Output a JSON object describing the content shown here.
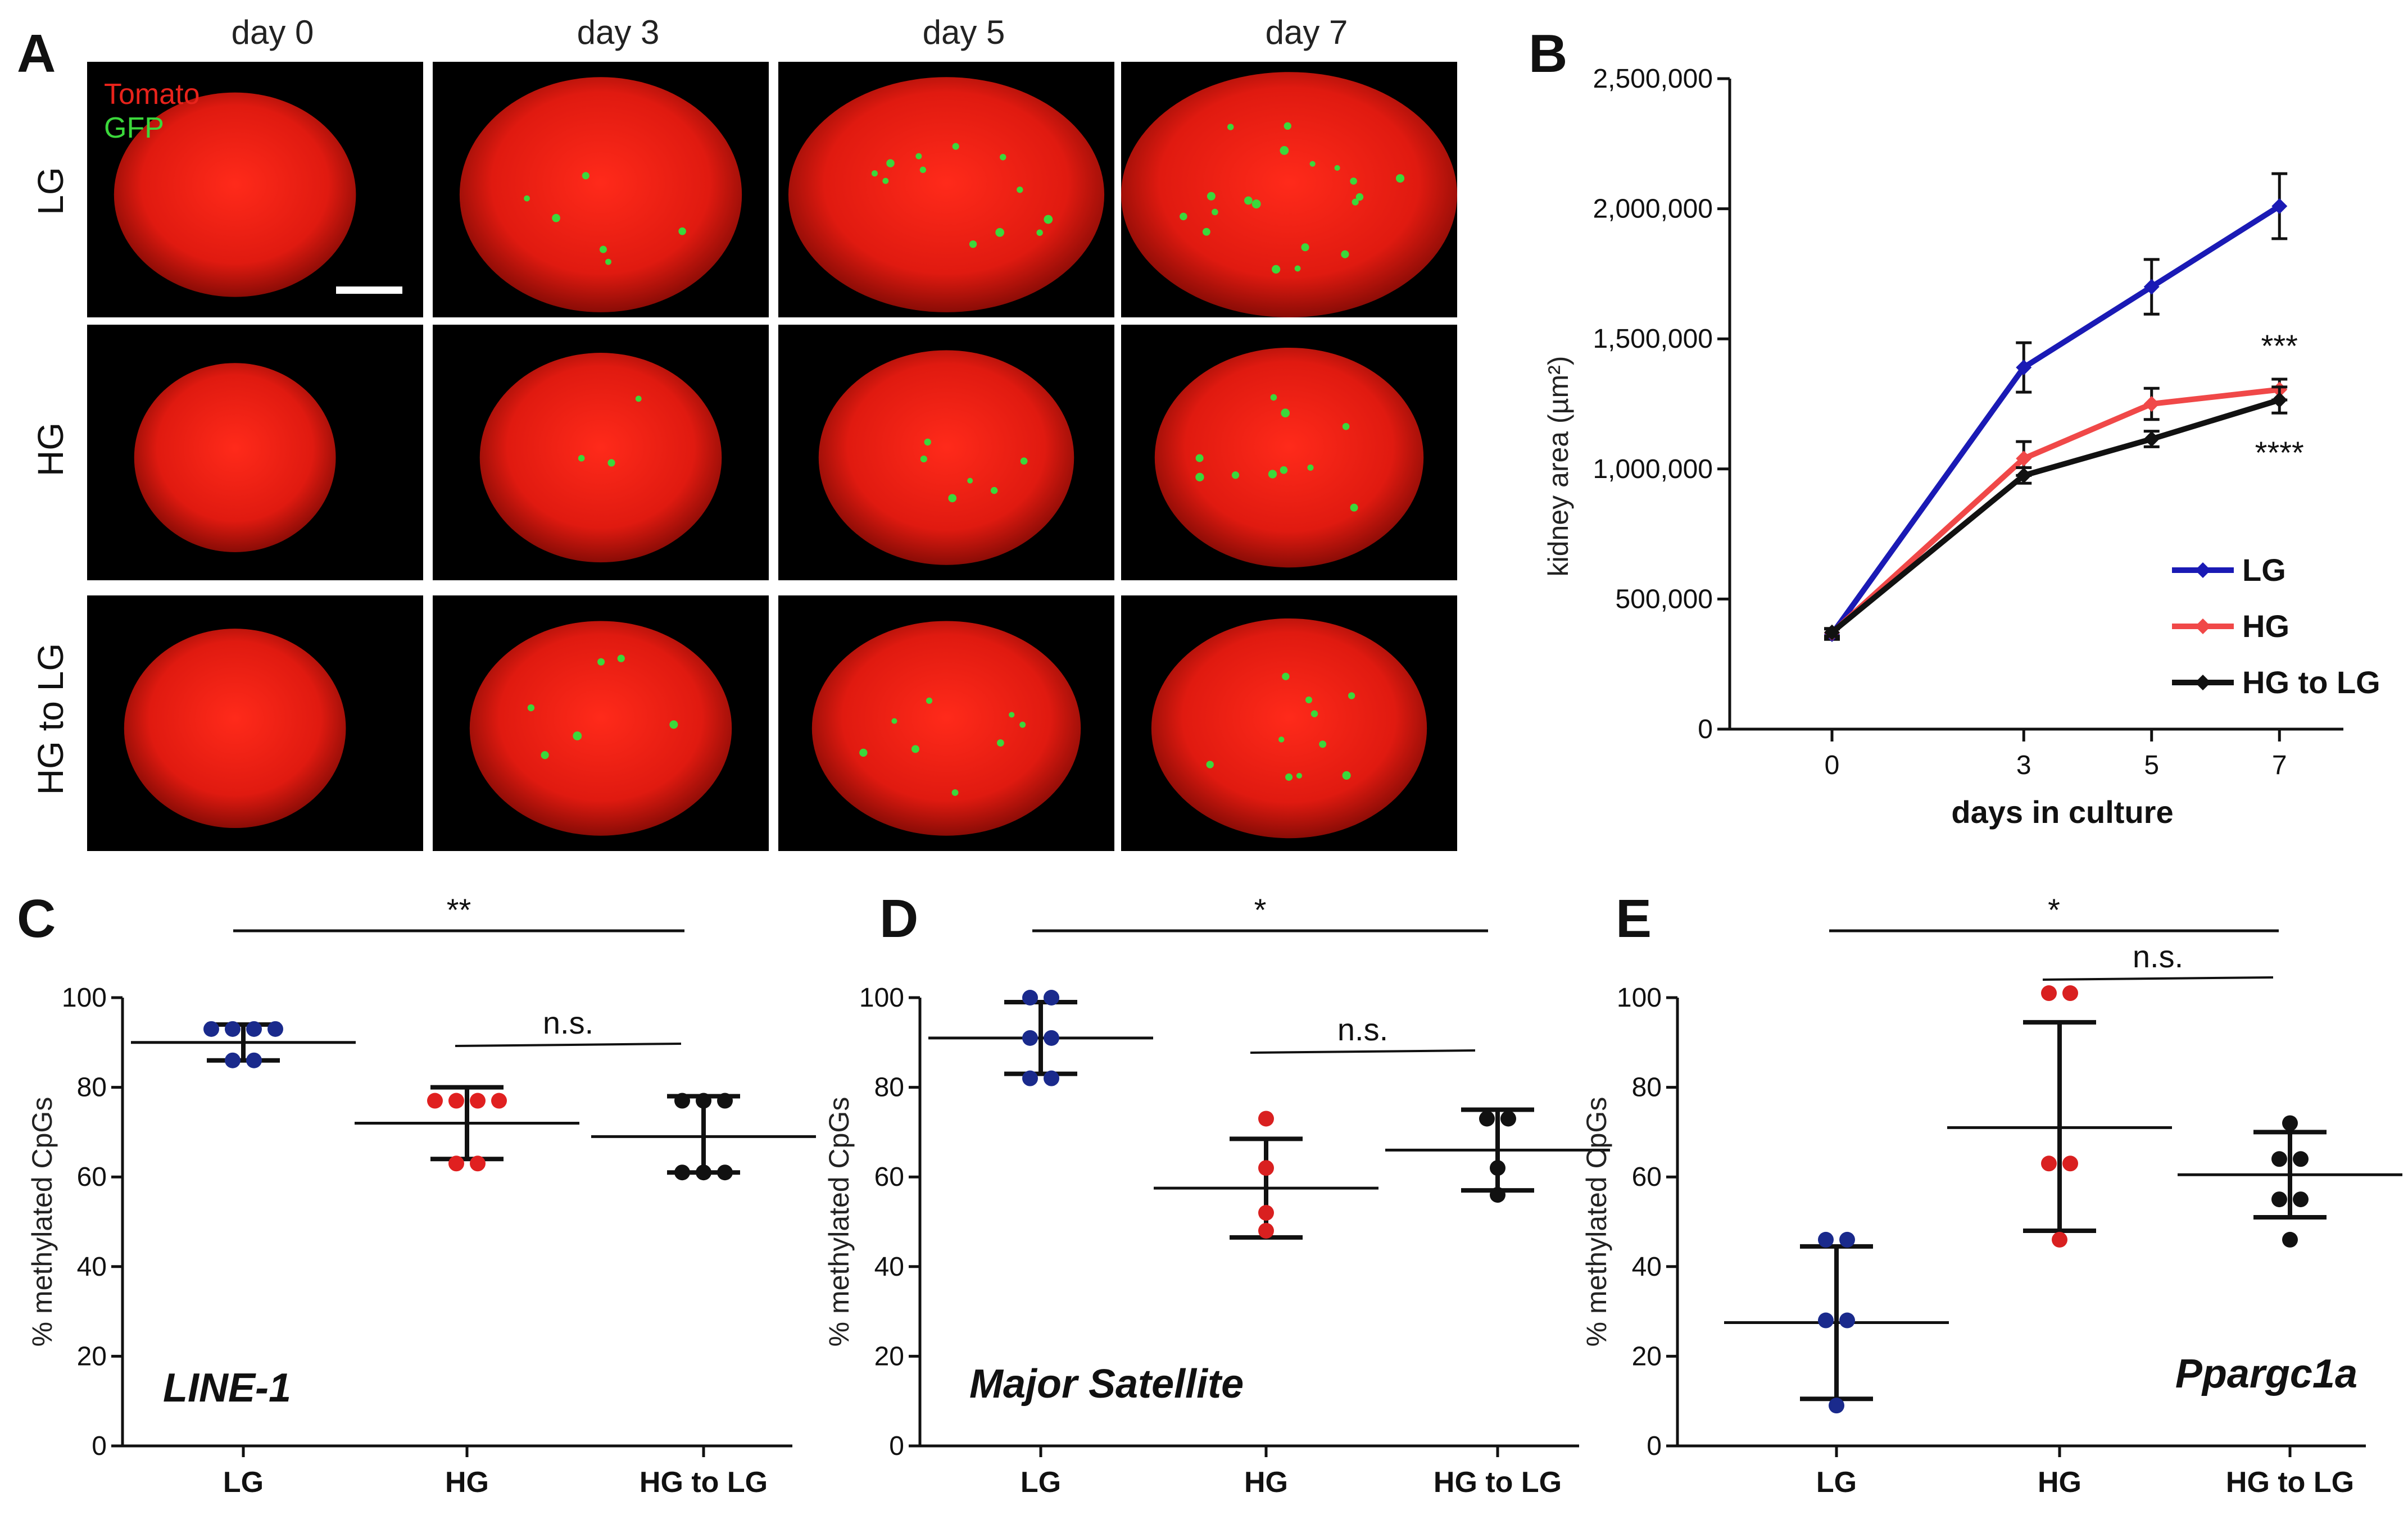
{
  "panel_labels": [
    "A",
    "B",
    "C",
    "D",
    "E"
  ],
  "panel_a": {
    "columns": [
      "day 0",
      "day 3",
      "day 5",
      "day 7"
    ],
    "rows": [
      "LG",
      "HG",
      "HG to LG"
    ],
    "channel_labels": {
      "tomato": "Tomato",
      "gfp": "GFP"
    },
    "colors": {
      "tomato": "#e8231b",
      "gfp": "#3bd83b",
      "background": "#000000"
    }
  },
  "chart_data": [
    {
      "id": "B",
      "type": "line",
      "title": "",
      "xlabel": "days in culture",
      "ylabel": "kidney area (µm²)",
      "x": [
        0,
        3,
        5,
        7
      ],
      "xlim": [
        -1.6,
        8.0
      ],
      "ylim": [
        0,
        2500000
      ],
      "yticks": [
        0,
        500000,
        1000000,
        1500000,
        2000000,
        2500000
      ],
      "ytick_labels": [
        "0",
        "500,000",
        "1,000,000",
        "1,500,000",
        "2,000,000",
        "2,500,000"
      ],
      "xtick_labels": [
        "0",
        "3",
        "5",
        "7"
      ],
      "legend_position": "bottom-right",
      "series": [
        {
          "name": "LG",
          "color": "#1a1ab5",
          "values": [
            365000,
            1390000,
            1700000,
            2010000
          ],
          "errors": [
            20000,
            95000,
            105000,
            125000
          ]
        },
        {
          "name": "HG",
          "color": "#f04848",
          "values": [
            370000,
            1040000,
            1250000,
            1305000
          ],
          "errors": [
            15000,
            65000,
            60000,
            40000
          ]
        },
        {
          "name": "HG to LG",
          "color": "#111111",
          "values": [
            372000,
            975000,
            1115000,
            1265000
          ],
          "errors": [
            15000,
            30000,
            30000,
            50000
          ]
        }
      ],
      "annotations": [
        {
          "text": "***",
          "series": "HG"
        },
        {
          "text": "****",
          "series": "HG to LG"
        }
      ]
    },
    {
      "id": "C",
      "type": "scatter",
      "ylabel": "% methylated CpGs",
      "gene": "LINE-1",
      "gene_position": "bottom-left",
      "categories": [
        "LG",
        "HG",
        "HG to LG"
      ],
      "ylim": [
        0,
        100
      ],
      "yticks": [
        0,
        20,
        40,
        60,
        80,
        100
      ],
      "groups": [
        {
          "name": "LG",
          "color": "#1a2a8c",
          "points": [
            93,
            93,
            93,
            93,
            86,
            86
          ],
          "mean": 90,
          "sd_low": 86,
          "sd_high": 94
        },
        {
          "name": "HG",
          "color": "#e02020",
          "points": [
            77,
            77,
            77,
            77,
            63,
            63
          ],
          "mean": 72,
          "sd_low": 64,
          "sd_high": 80
        },
        {
          "name": "HG to LG",
          "color": "#111111",
          "points": [
            77,
            77,
            77,
            61,
            61,
            61
          ],
          "mean": 69,
          "sd_low": 61,
          "sd_high": 78
        }
      ],
      "brackets": [
        {
          "from": "LG",
          "to": "HG to LG",
          "label": "**"
        },
        {
          "from": "HG",
          "to": "HG to LG",
          "label": "n.s."
        }
      ]
    },
    {
      "id": "D",
      "type": "scatter",
      "ylabel": "% methylated CpGs",
      "gene": "Major Satellite",
      "gene_position": "bottom-left",
      "categories": [
        "LG",
        "HG",
        "HG to LG"
      ],
      "ylim": [
        0,
        100
      ],
      "yticks": [
        0,
        20,
        40,
        60,
        80,
        100
      ],
      "groups": [
        {
          "name": "LG",
          "color": "#1a2a8c",
          "points": [
            100,
            100,
            91,
            91,
            82,
            82
          ],
          "mean": 91,
          "sd_low": 83,
          "sd_high": 99
        },
        {
          "name": "HG",
          "color": "#d92020",
          "points": [
            73,
            62,
            52,
            48
          ],
          "mean": 57.5,
          "sd_low": 46.5,
          "sd_high": 68.5
        },
        {
          "name": "HG to LG",
          "color": "#111111",
          "points": [
            73,
            73,
            62,
            56
          ],
          "mean": 66,
          "sd_low": 57,
          "sd_high": 75
        }
      ],
      "brackets": [
        {
          "from": "LG",
          "to": "HG to LG",
          "label": "*"
        },
        {
          "from": "HG",
          "to": "HG to LG",
          "label": "n.s."
        }
      ]
    },
    {
      "id": "E",
      "type": "scatter",
      "ylabel": "% methylated CpGs",
      "gene": "Ppargc1a",
      "gene_position": "bottom-right",
      "categories": [
        "LG",
        "HG",
        "HG to LG"
      ],
      "ylim": [
        0,
        100
      ],
      "yticks": [
        0,
        20,
        40,
        60,
        80,
        100
      ],
      "groups": [
        {
          "name": "LG",
          "color": "#1a2a8c",
          "points": [
            46,
            46,
            28,
            28,
            9
          ],
          "mean": 27.5,
          "sd_low": 10.5,
          "sd_high": 44.5
        },
        {
          "name": "HG",
          "color": "#d92020",
          "points": [
            101,
            101,
            63,
            63,
            46
          ],
          "mean": 71,
          "sd_low": 48,
          "sd_high": 94.5
        },
        {
          "name": "HG to LG",
          "color": "#111111",
          "points": [
            72,
            64,
            64,
            55,
            55,
            46
          ],
          "mean": 60.5,
          "sd_low": 51,
          "sd_high": 70
        }
      ],
      "brackets": [
        {
          "from": "LG",
          "to": "HG to LG",
          "label": "*"
        },
        {
          "from": "HG",
          "to": "HG to LG",
          "label": "n.s."
        }
      ]
    }
  ]
}
